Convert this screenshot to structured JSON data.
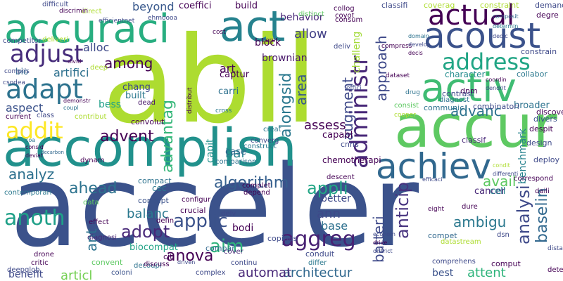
{
  "words": [
    {
      "text": "acceler",
      "color": "#3b528b"
    },
    {
      "text": "abil",
      "color": "#addc30"
    },
    {
      "text": "accomplish",
      "color": "#21918c"
    },
    {
      "text": "accur",
      "color": "#5ec962"
    },
    {
      "text": "acoust",
      "color": "#3b528b"
    },
    {
      "text": "accuraci",
      "color": "#28ae80"
    },
    {
      "text": "act",
      "color": "#26828e"
    },
    {
      "text": "actual",
      "color": "#440154"
    },
    {
      "text": "activ",
      "color": "#3fbc73"
    },
    {
      "text": "achiev",
      "color": "#31688e"
    },
    {
      "text": "adapt",
      "color": "#2c728e"
    },
    {
      "text": "adjust",
      "color": "#472d7b"
    },
    {
      "text": "addit",
      "color": "#fde725"
    },
    {
      "text": "address",
      "color": "#21a585"
    },
    {
      "text": "administr",
      "color": "#482878"
    },
    {
      "text": "aim",
      "color": "#2fb47c"
    },
    {
      "text": "ahead",
      "color": "#2c728e"
    },
    {
      "text": "advent",
      "color": "#440154"
    },
    {
      "text": "adopt",
      "color": "#482878"
    },
    {
      "text": "aggreg",
      "color": "#482173"
    },
    {
      "text": "anoth",
      "color": "#1fa088"
    },
    {
      "text": "advantag",
      "color": "#35b779"
    },
    {
      "text": "alongsid",
      "color": "#2a788e"
    },
    {
      "text": "applic",
      "color": "#3b528b"
    },
    {
      "text": "analysi",
      "color": "#3e4989"
    },
    {
      "text": "baselin",
      "color": "#31688e"
    },
    {
      "text": "among",
      "color": "#440154"
    },
    {
      "text": "algorithm",
      "color": "#355f8d"
    },
    {
      "text": "appli",
      "color": "#21a585"
    },
    {
      "text": "analyz",
      "color": "#2d708e"
    },
    {
      "text": "advanc",
      "color": "#2c728e"
    },
    {
      "text": "ambigu",
      "color": "#2a788e"
    },
    {
      "text": "anova",
      "color": "#440154"
    },
    {
      "text": "architectur",
      "color": "#31688e"
    },
    {
      "text": "anticip",
      "color": "#46327e"
    },
    {
      "text": "augment",
      "color": "#3e4989"
    },
    {
      "text": "approach",
      "color": "#3e4989"
    },
    {
      "text": "assess",
      "color": "#440154"
    },
    {
      "text": "automat",
      "color": "#482878"
    },
    {
      "text": "articl",
      "color": "#75d054"
    },
    {
      "text": "batteri",
      "color": "#3e4989"
    },
    {
      "text": "avail",
      "color": "#5ec962"
    },
    {
      "text": "area",
      "color": "#38588c"
    },
    {
      "text": "allow",
      "color": "#424086"
    },
    {
      "text": "alloc",
      "color": "#3e4989"
    },
    {
      "text": "beyond",
      "color": "#38588c"
    },
    {
      "text": "artifici",
      "color": "#2d708e"
    },
    {
      "text": "aspect",
      "color": "#3b528b"
    },
    {
      "text": "ann",
      "color": "#3e4989"
    },
    {
      "text": "base",
      "color": "#2d708e"
    },
    {
      "text": "balanc",
      "color": "#2a788e"
    },
    {
      "text": "attent",
      "color": "#2fb47c"
    },
    {
      "text": "ant",
      "color": "#2c728e"
    },
    {
      "text": "bar",
      "color": "#26828e"
    },
    {
      "text": "art",
      "color": "#440154"
    },
    {
      "text": "better",
      "color": "#3e4989"
    },
    {
      "text": "behavior",
      "color": "#482878"
    },
    {
      "text": "benchmark",
      "color": "#26828e"
    },
    {
      "text": "bess",
      "color": "#1fa088"
    },
    {
      "text": "best",
      "color": "#3b528b"
    },
    {
      "text": "benefit",
      "color": "#3e4989"
    },
    {
      "text": "build",
      "color": "#440154"
    },
    {
      "text": "coeffici",
      "color": "#440154"
    },
    {
      "text": "block",
      "color": "#440154"
    },
    {
      "text": "brownian",
      "color": "#481769"
    },
    {
      "text": "bodi",
      "color": "#440154"
    },
    {
      "text": "capabl",
      "color": "#440154"
    },
    {
      "text": "cancer",
      "color": "#482878"
    },
    {
      "text": "cell",
      "color": "#26828e"
    },
    {
      "text": "case",
      "color": "#31688e"
    },
    {
      "text": "bio",
      "color": "#31688e"
    },
    {
      "text": "biocompat",
      "color": "#20a386"
    },
    {
      "text": "built",
      "color": "#2a788e"
    },
    {
      "text": "carri",
      "color": "#2d708e"
    },
    {
      "text": "captur",
      "color": "#440154"
    },
    {
      "text": "challeng",
      "color": "#a2da37"
    },
    {
      "text": "chang",
      "color": "#3e4989"
    },
    {
      "text": "cec",
      "color": "#2a788e"
    },
    {
      "text": "broader",
      "color": "#2c728e"
    },
    {
      "text": "character",
      "color": "#228c8d"
    },
    {
      "text": "capit",
      "color": "#21918c"
    },
    {
      "text": "chemotherapi",
      "color": "#440154"
    },
    {
      "text": "citi",
      "color": "#440154"
    },
    {
      "text": "convolut",
      "color": "#440154"
    },
    {
      "text": "combinatori",
      "color": "#3e4989"
    },
    {
      "text": "collabor",
      "color": "#2a788e"
    },
    {
      "text": "classif",
      "color": "#482878"
    },
    {
      "text": "cnns",
      "color": "#3e4989"
    },
    {
      "text": "compet",
      "color": "#31688e"
    },
    {
      "text": "convent",
      "color": "#5ec962"
    },
    {
      "text": "compact",
      "color": "#2c728e"
    },
    {
      "text": "concept",
      "color": "#3b528b"
    },
    {
      "text": "contrast",
      "color": "#3e4989"
    },
    {
      "text": "constrain",
      "color": "#3e4989"
    },
    {
      "text": "communic",
      "color": "#2c728e"
    },
    {
      "text": "compar",
      "color": "#31688e"
    },
    {
      "text": "comput",
      "color": "#440154"
    },
    {
      "text": "copious",
      "color": "#3e4989"
    },
    {
      "text": "conduit",
      "color": "#3e4989"
    },
    {
      "text": "constraint",
      "color": "#addc30"
    },
    {
      "text": "coverag",
      "color": "#addc30"
    },
    {
      "text": "demand",
      "color": "#3e4989"
    },
    {
      "text": "degre",
      "color": "#440154"
    },
    {
      "text": "classifi",
      "color": "#3e4989"
    },
    {
      "text": "dead",
      "color": "#481769"
    },
    {
      "text": "crucial",
      "color": "#440154"
    },
    {
      "text": "configur",
      "color": "#440154"
    },
    {
      "text": "complex",
      "color": "#3e4989"
    },
    {
      "text": "continu",
      "color": "#3e4989"
    },
    {
      "text": "composit",
      "color": "#31688e"
    },
    {
      "text": "critic",
      "color": "#440154"
    },
    {
      "text": "drone",
      "color": "#440154"
    },
    {
      "text": "deepglob",
      "color": "#3e4989"
    },
    {
      "text": "decoupl",
      "color": "#2c728e"
    },
    {
      "text": "coloni",
      "color": "#3b528b"
    },
    {
      "text": "cover",
      "color": "#482878"
    },
    {
      "text": "depend",
      "color": "#440154"
    },
    {
      "text": "dynam",
      "color": "#440154"
    },
    {
      "text": "determin",
      "color": "#2a788e"
    },
    {
      "text": "diagnost",
      "color": "#31688e"
    },
    {
      "text": "discover",
      "color": "#2c728e"
    },
    {
      "text": "divers",
      "color": "#440154"
    },
    {
      "text": "deploy",
      "color": "#3b528b"
    },
    {
      "text": "dedic",
      "color": "#3e4989"
    },
    {
      "text": "design",
      "color": "#46327e"
    },
    {
      "text": "despit",
      "color": "#3e4989"
    },
    {
      "text": "dnm",
      "color": "#440154"
    },
    {
      "text": "drug",
      "color": "#440154"
    },
    {
      "text": "domain",
      "color": "#2c728e"
    },
    {
      "text": "distribut",
      "color": "#2a788e"
    },
    {
      "text": "dure",
      "color": "#440154"
    },
    {
      "text": "correspond",
      "color": "#440154"
    },
    {
      "text": "comprehens",
      "color": "#440154"
    },
    {
      "text": "discuss",
      "color": "#440154"
    },
    {
      "text": "develop",
      "color": "#3e4989"
    },
    {
      "text": "effect",
      "color": "#440154"
    },
    {
      "text": "diagnosi",
      "color": "#3e4989"
    },
    {
      "text": "defin",
      "color": "#31688e"
    },
    {
      "text": "dsn",
      "color": "#440154"
    },
    {
      "text": "detect",
      "color": "#482878"
    },
    {
      "text": "differ",
      "color": "#440154"
    },
    {
      "text": "daili",
      "color": "#3e4989"
    },
    {
      "text": "decis",
      "color": "#440154"
    },
    {
      "text": "contemporari",
      "color": "#31688e"
    },
    {
      "text": "data",
      "color": "#2a788e"
    },
    {
      "text": "coordin",
      "color": "#440154"
    },
    {
      "text": "contribut",
      "color": "#3e4989"
    },
    {
      "text": "current",
      "color": "#2a788e"
    },
    {
      "text": "class",
      "color": "#5ec962"
    },
    {
      "text": "consist",
      "color": "#3e4989"
    },
    {
      "text": "descent",
      "color": "#addc30"
    },
    {
      "text": "converg",
      "color": "#440154"
    },
    {
      "text": "construct",
      "color": "#3e4989"
    },
    {
      "text": "creat",
      "color": "#5ec962"
    },
    {
      "text": "comparison",
      "color": "#440154"
    },
    {
      "text": "dendrit",
      "color": "#3e4989"
    },
    {
      "text": "core",
      "color": "#2a788e"
    },
    {
      "text": "delv",
      "color": "#2a788e"
    },
    {
      "text": "coupl",
      "color": "#2c728e"
    },
    {
      "text": "demonstr",
      "color": "#440154"
    },
    {
      "text": "complet",
      "color": "#440154"
    },
    {
      "text": "cost",
      "color": "#3e4989"
    },
    {
      "text": "distinct",
      "color": "#3e4989"
    },
    {
      "text": "coa",
      "color": "#2c728e"
    },
    {
      "text": "deliv",
      "color": "#440154"
    },
    {
      "text": "consum",
      "color": "#440154"
    },
    {
      "text": "coyot",
      "color": "#5ec962"
    },
    {
      "text": "collog",
      "color": "#31688e"
    },
    {
      "text": "direct",
      "color": "#3e4989"
    },
    {
      "text": "cross",
      "color": "#440154"
    },
    {
      "text": "consid",
      "color": "#440154"
    },
    {
      "text": "deviat",
      "color": "#440154"
    },
    {
      "text": "compress",
      "color": "#addc30"
    },
    {
      "text": "compris",
      "color": "#2a788e"
    },
    {
      "text": "competitor",
      "color": "#3e4989"
    },
    {
      "text": "difficult",
      "color": "#3e4989"
    },
    {
      "text": "discrimin",
      "color": "#440154"
    },
    {
      "text": "deliveri",
      "color": "#3e4989"
    },
    {
      "text": "effici",
      "color": "#3e4989"
    },
    {
      "text": "datastream",
      "color": "#3e4989"
    },
    {
      "text": "divid",
      "color": "#440154"
    },
    {
      "text": "csodea",
      "color": "#addc30"
    },
    {
      "text": "econom",
      "color": "#3e4989"
    },
    {
      "text": "cooper",
      "color": "#addc30"
    },
    {
      "text": "eight",
      "color": "#440154"
    },
    {
      "text": "dataset",
      "color": "#3e4989"
    },
    {
      "text": "drive",
      "color": "#440154"
    },
    {
      "text": "driven",
      "color": "#addc30"
    },
    {
      "text": "decarbon",
      "color": "#440154"
    },
    {
      "text": "distanc",
      "color": "#440154"
    },
    {
      "text": "deep",
      "color": "#440154"
    },
    {
      "text": "efficientnet",
      "color": "#3e4989"
    },
    {
      "text": "ehmoooa",
      "color": "#31688e"
    },
    {
      "text": "district",
      "color": "#3e4989"
    },
    {
      "text": "condit",
      "color": "#addc30"
    },
    {
      "text": "differenti",
      "color": "#3e4989"
    },
    {
      "text": "efficaci",
      "color": "#3e4989"
    }
  ]
}
